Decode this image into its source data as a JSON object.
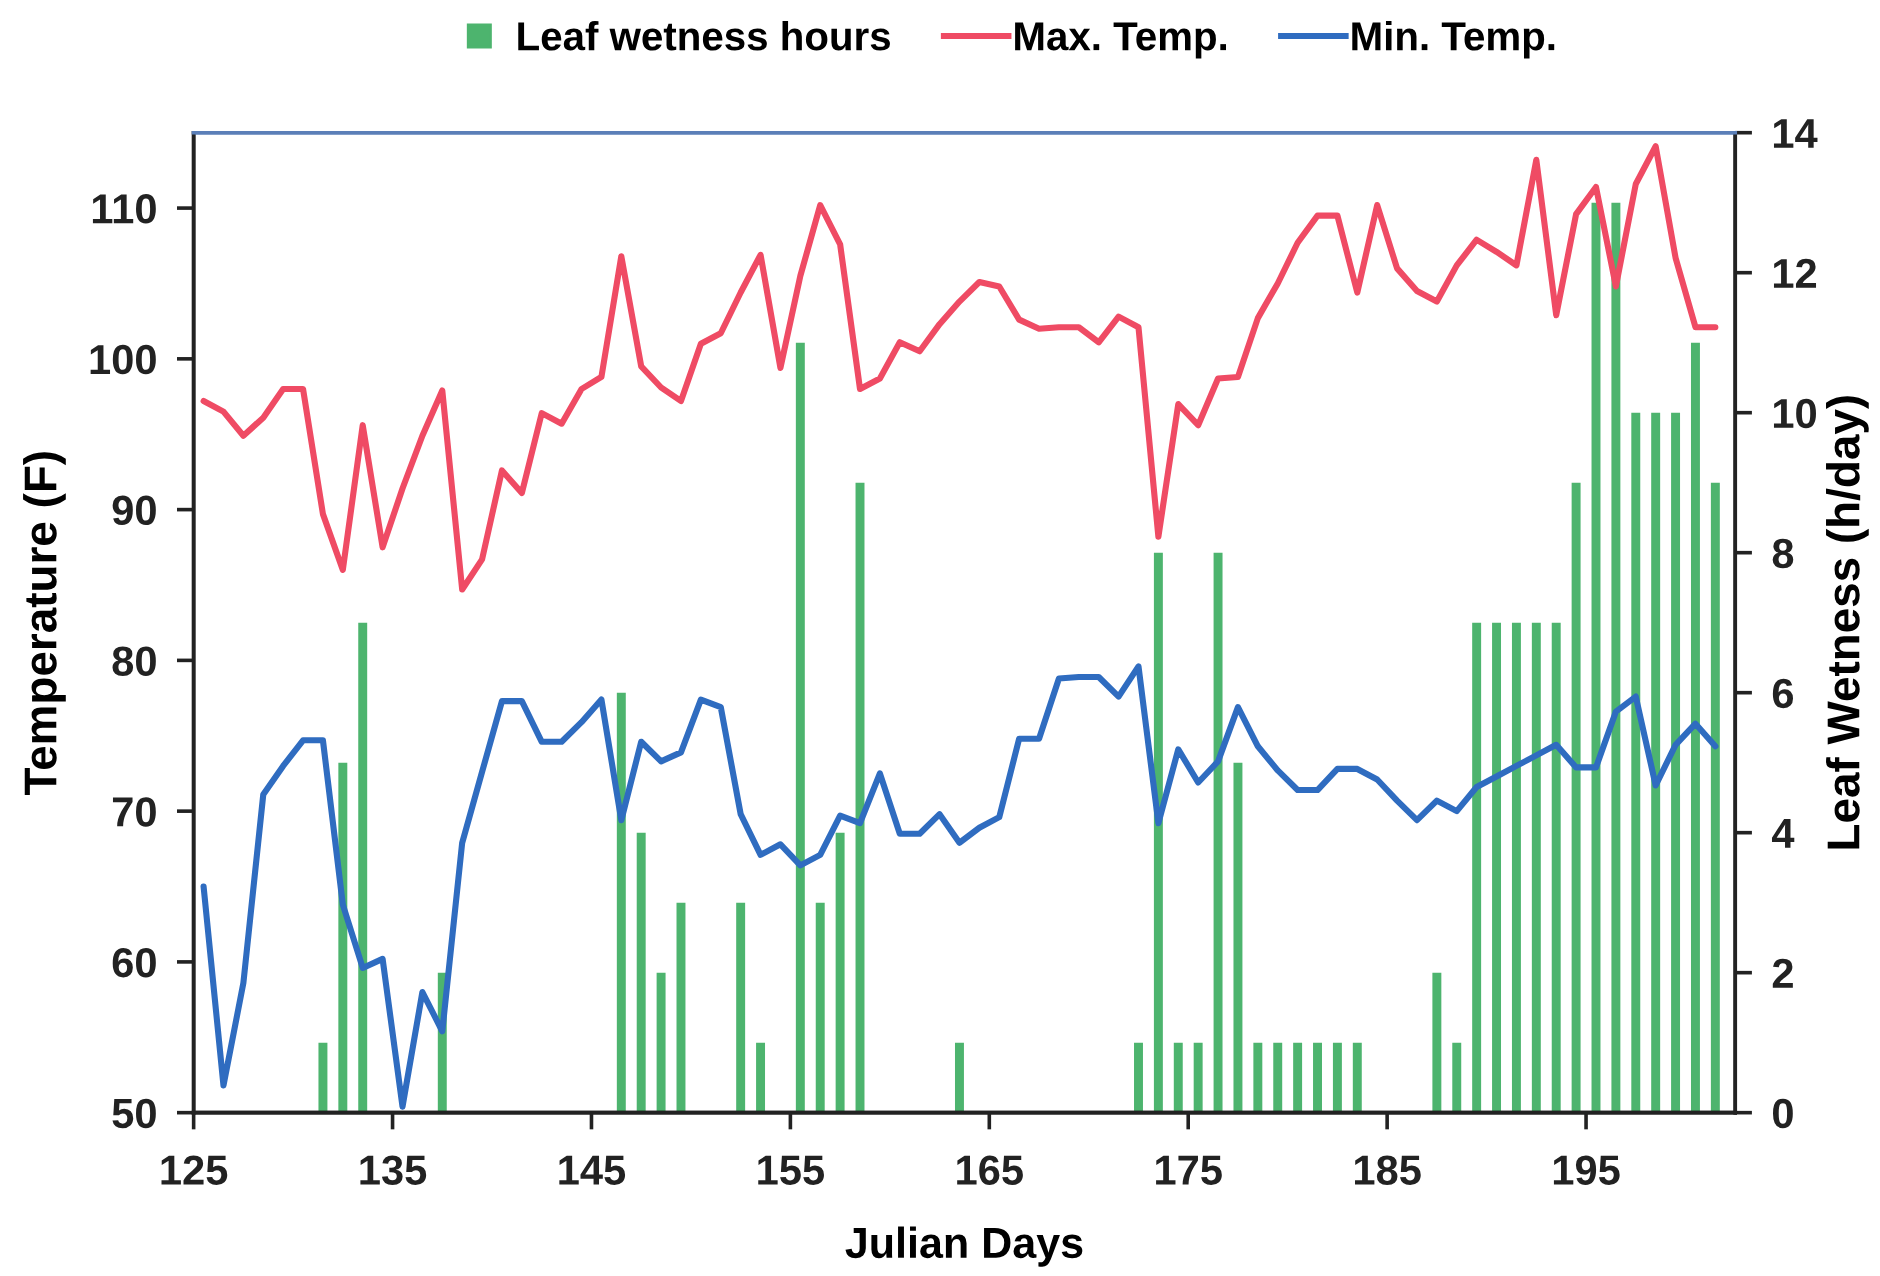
{
  "chart_data": {
    "type": "bar",
    "xlabel": "Julian Days",
    "ylabel": "Temperature (F)",
    "y2label": "Leaf Wetness (h/day)",
    "x": [
      125.5,
      126.5,
      127.5,
      128.5,
      129.5,
      130.5,
      131.5,
      132.5,
      133.5,
      134.5,
      135.5,
      136.5,
      137.5,
      138.5,
      139.5,
      140.5,
      141.5,
      142.5,
      143.5,
      144.5,
      145.5,
      146.5,
      147.5,
      148.5,
      149.5,
      150.5,
      151.5,
      152.5,
      153.5,
      154.5,
      155.5,
      156.5,
      157.5,
      158.5,
      159.5,
      160.5,
      161.5,
      162.5,
      163.5,
      164.5,
      165.5,
      166.5,
      167.5,
      168.5,
      169.5,
      170.5,
      171.5,
      172.5,
      173.5,
      174.5,
      175.5,
      176.5,
      177.5,
      178.5,
      179.5,
      180.5,
      181.5,
      182.5,
      183.5,
      184.5,
      185.5,
      186.5,
      187.5,
      188.5,
      189.5,
      190.5,
      191.5,
      192.5,
      193.5,
      194.5,
      195.5,
      196.5,
      197.5,
      198.5,
      199.5,
      200.5,
      201.5
    ],
    "xlim": [
      125,
      202.5
    ],
    "xticks": [
      125,
      135,
      145,
      155,
      165,
      175,
      185,
      195
    ],
    "ylim": [
      50,
      115
    ],
    "yticks": [
      50,
      60,
      70,
      80,
      90,
      100,
      110
    ],
    "y2lim": [
      0,
      14
    ],
    "y2ticks": [
      0,
      2,
      4,
      6,
      8,
      10,
      12,
      14
    ],
    "legend": "top",
    "series": [
      {
        "name": "Leaf wetness hours",
        "axis": "y2",
        "color": "#4db46e",
        "values": [
          null,
          null,
          null,
          null,
          null,
          null,
          1,
          5,
          7,
          null,
          null,
          null,
          2,
          null,
          null,
          null,
          null,
          null,
          null,
          null,
          null,
          6,
          4,
          2,
          3,
          null,
          null,
          3,
          1,
          null,
          11,
          3,
          4,
          9,
          null,
          null,
          null,
          null,
          1,
          null,
          null,
          null,
          null,
          null,
          null,
          null,
          null,
          1,
          8,
          1,
          1,
          8,
          5,
          1,
          1,
          1,
          1,
          1,
          1,
          null,
          null,
          null,
          2,
          1,
          7,
          7,
          7,
          7,
          7,
          9,
          13,
          13,
          10,
          10,
          10,
          11,
          9
        ]
      },
      {
        "name": "Max. Temp.",
        "type": "line",
        "color": "#ef4b64",
        "values": [
          97.2,
          96.5,
          94.9,
          96.1,
          98.0,
          98.0,
          89.7,
          86.0,
          95.6,
          87.5,
          91.4,
          94.9,
          97.9,
          84.7,
          86.7,
          92.6,
          91.1,
          96.4,
          95.7,
          98.0,
          98.8,
          106.8,
          99.5,
          98.1,
          97.2,
          101.0,
          101.7,
          104.4,
          106.9,
          99.4,
          105.5,
          110.2,
          107.6,
          98.0,
          98.7,
          101.1,
          100.5,
          102.3,
          103.8,
          105.1,
          104.8,
          102.6,
          102.0,
          102.1,
          102.1,
          101.1,
          102.8,
          102.1,
          88.2,
          97.0,
          95.6,
          98.7,
          98.8,
          102.7,
          105.0,
          107.7,
          109.5,
          109.5,
          104.4,
          110.2,
          106.0,
          104.5,
          103.8,
          106.2,
          107.9,
          107.1,
          106.2,
          113.2,
          102.9,
          109.6,
          111.4,
          104.8,
          111.6,
          114.1,
          106.7,
          102.1,
          102.1
        ]
      },
      {
        "name": "Min. Temp.",
        "type": "line",
        "color": "#2f6cc0",
        "values": [
          65.0,
          51.8,
          58.6,
          71.1,
          73.0,
          74.7,
          74.7,
          63.8,
          59.6,
          60.2,
          50.4,
          58.0,
          55.4,
          67.9,
          72.6,
          77.3,
          77.3,
          74.6,
          74.6,
          75.9,
          77.4,
          69.4,
          74.6,
          73.3,
          73.9,
          77.4,
          76.9,
          69.8,
          67.1,
          67.8,
          66.4,
          67.1,
          69.7,
          69.2,
          72.5,
          68.5,
          68.5,
          69.8,
          67.9,
          68.9,
          69.6,
          74.8,
          74.8,
          78.8,
          78.9,
          78.9,
          77.6,
          79.6,
          69.2,
          74.1,
          71.9,
          73.3,
          76.9,
          74.3,
          72.7,
          71.4,
          71.4,
          72.8,
          72.8,
          72.1,
          70.7,
          69.4,
          70.7,
          70.0,
          71.6,
          72.3,
          73.0,
          73.7,
          74.4,
          72.9,
          72.9,
          76.6,
          77.6,
          71.7,
          74.4,
          75.8,
          74.3
        ]
      }
    ]
  }
}
